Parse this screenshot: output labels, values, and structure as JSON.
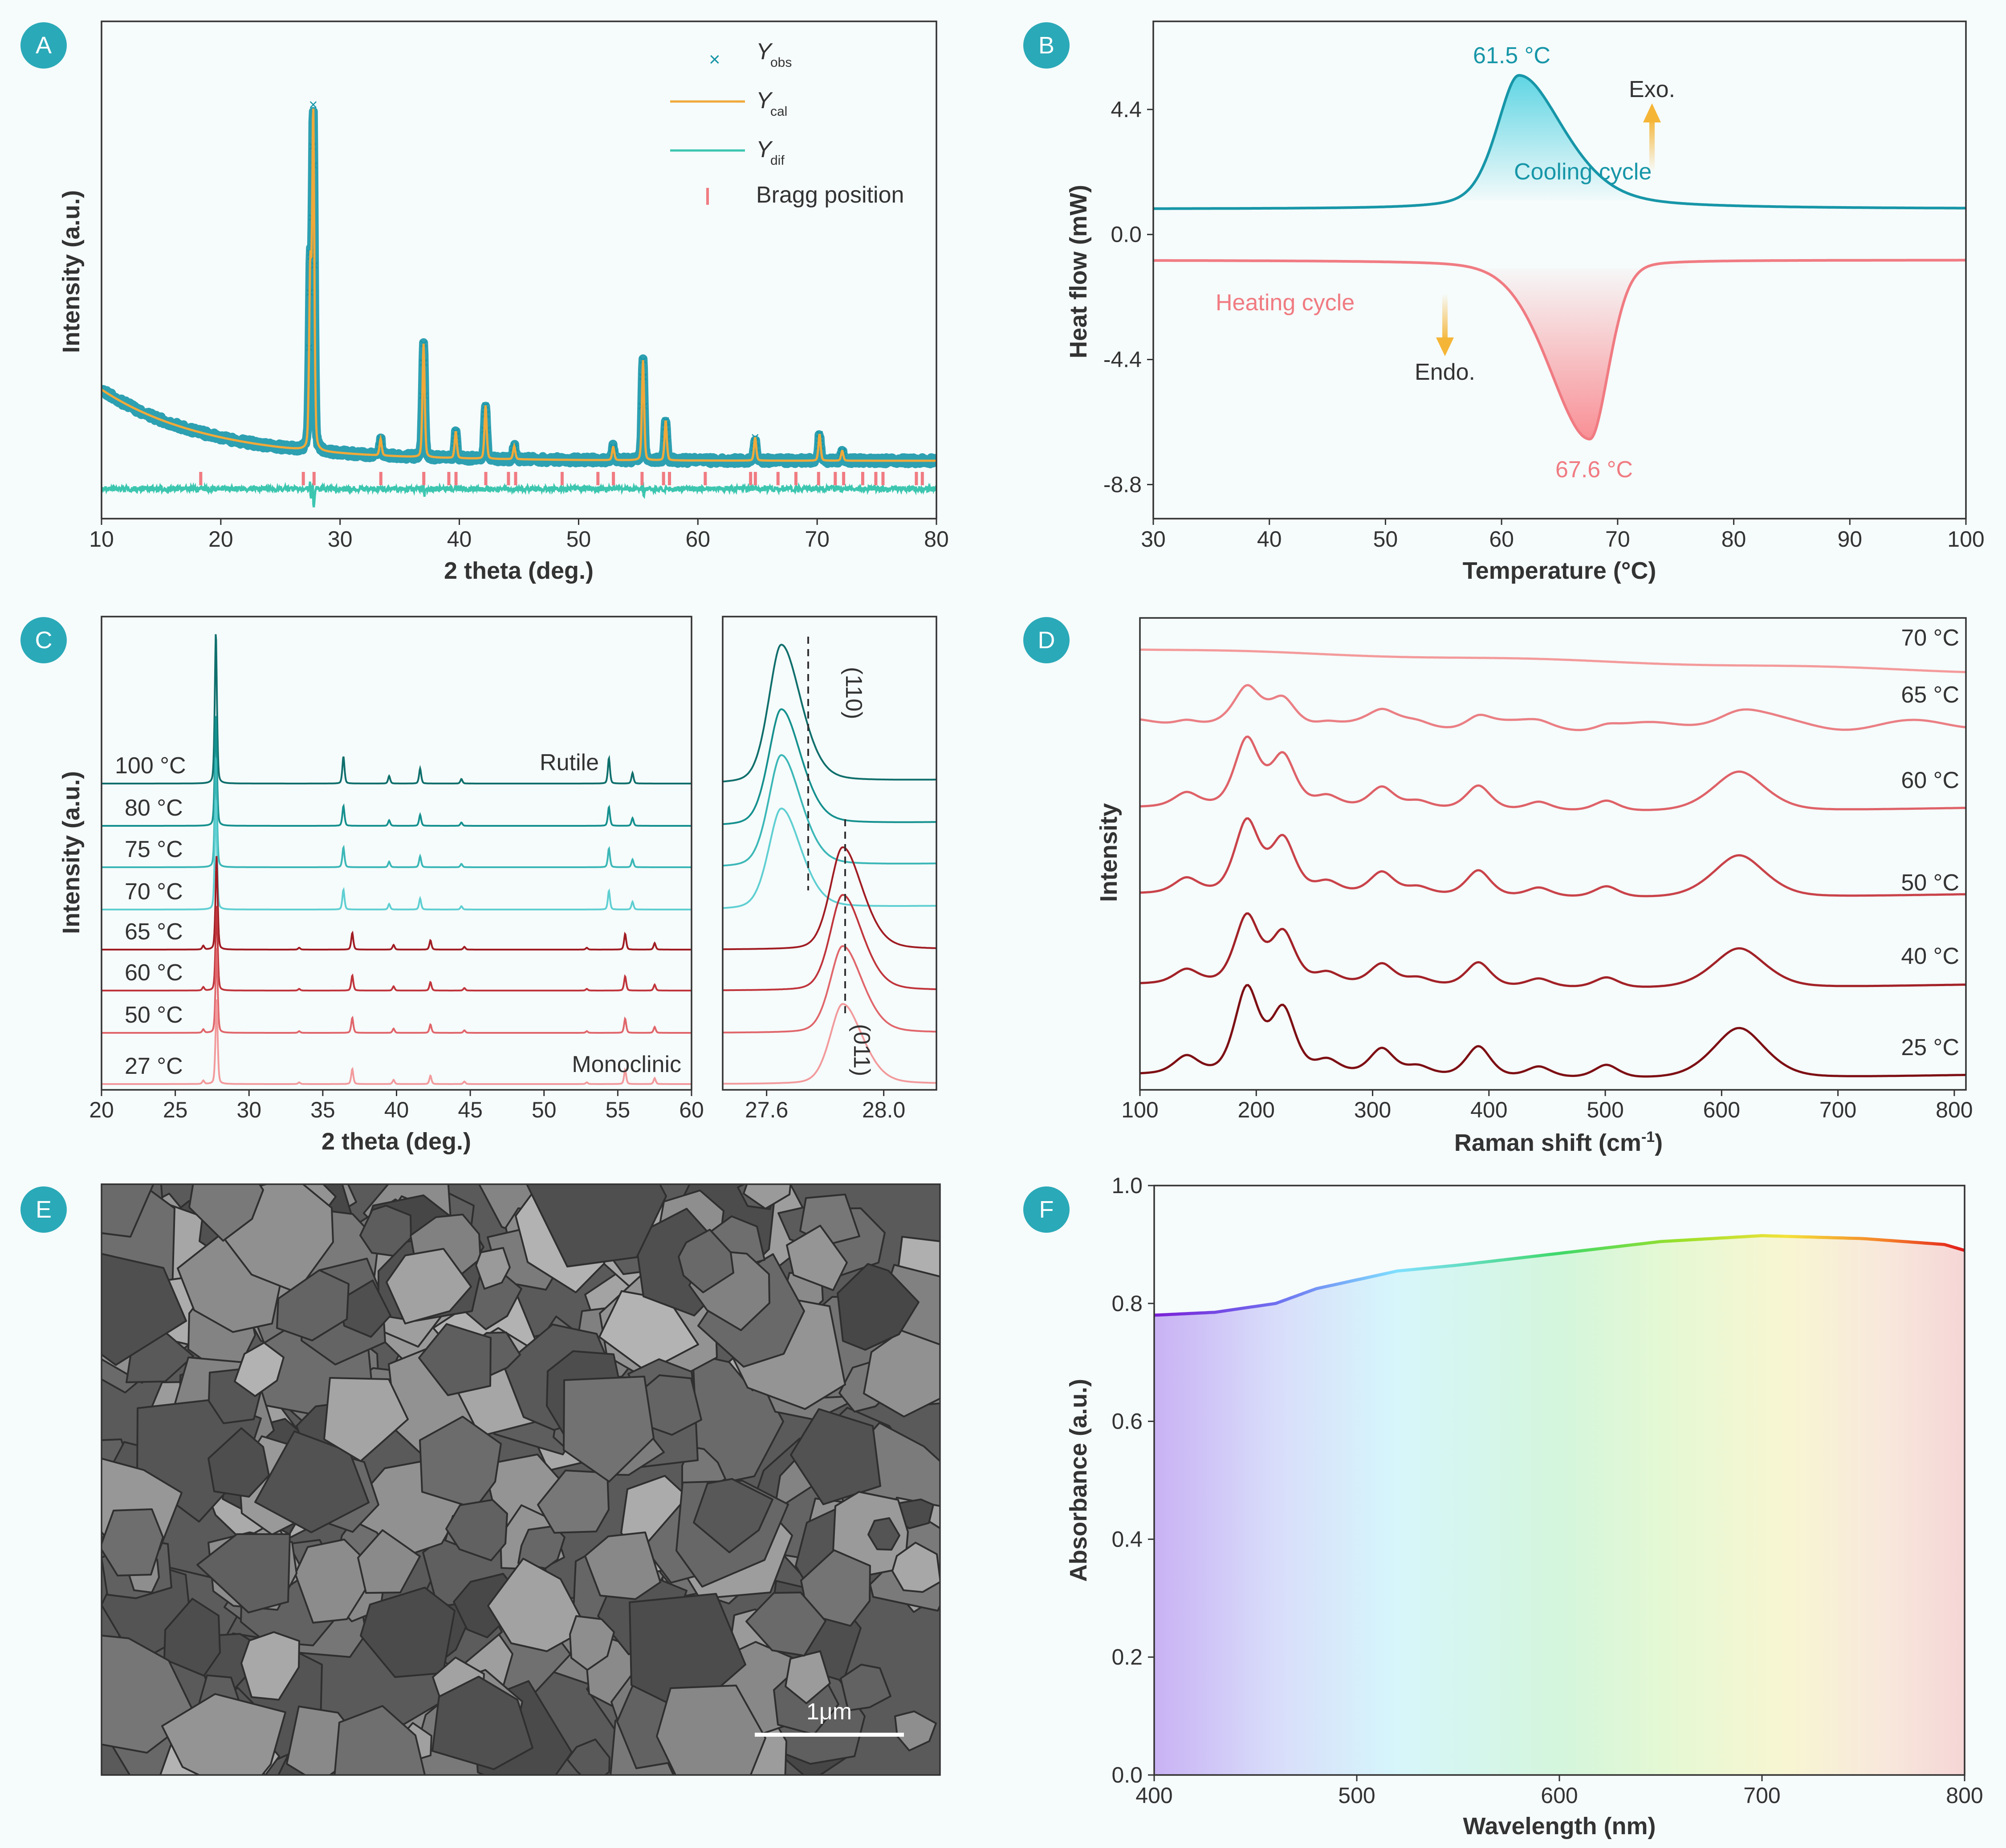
{
  "panels": {
    "A": {
      "badge": "A"
    },
    "B": {
      "badge": "B"
    },
    "C": {
      "badge": "C"
    },
    "D": {
      "badge": "D"
    },
    "E": {
      "badge": "E"
    },
    "F": {
      "badge": "F"
    }
  },
  "colors": {
    "teal": "#1796a8",
    "teal_light": "#3cc6b0",
    "orange": "#f0a93a",
    "salmon": "#f07b82",
    "badge": "#2aa9b8",
    "dark_red": "#7d0f14"
  },
  "chart_data": [
    {
      "id": "A",
      "type": "line",
      "xlabel": "2 theta (deg.)",
      "ylabel": "Intensity (a.u.)",
      "xlim": [
        10,
        80
      ],
      "xticks": [
        "10",
        "20",
        "30",
        "40",
        "50",
        "60",
        "70",
        "80"
      ],
      "legend": {
        "placement": "top-right",
        "entries": [
          {
            "name": "Y",
            "sub": "obs",
            "marker": "cross"
          },
          {
            "name": "Y",
            "sub": "cal",
            "marker": "line-orange"
          },
          {
            "name": "Y",
            "sub": "dif",
            "marker": "line-teal"
          },
          {
            "name": "Bragg position",
            "sub": "",
            "marker": "tick"
          }
        ]
      },
      "peaks": [
        {
          "x": 27.5,
          "h": 0.52
        },
        {
          "x": 27.75,
          "h": 1.0
        },
        {
          "x": 33.4,
          "h": 0.05
        },
        {
          "x": 37.0,
          "h": 0.34
        },
        {
          "x": 39.7,
          "h": 0.08
        },
        {
          "x": 42.2,
          "h": 0.16
        },
        {
          "x": 44.6,
          "h": 0.04
        },
        {
          "x": 52.9,
          "h": 0.04
        },
        {
          "x": 55.4,
          "h": 0.3
        },
        {
          "x": 57.3,
          "h": 0.12
        },
        {
          "x": 64.8,
          "h": 0.07
        },
        {
          "x": 70.2,
          "h": 0.08
        },
        {
          "x": 72.1,
          "h": 0.03
        }
      ],
      "bragg_positions": [
        18.3,
        26.9,
        27.8,
        33.4,
        37.0,
        39.1,
        39.7,
        42.2,
        44.1,
        44.7,
        48.6,
        51.6,
        52.9,
        55.3,
        57.1,
        57.6,
        60.6,
        64.4,
        64.8,
        66.7,
        68.2,
        70.1,
        71.5,
        72.2,
        73.8,
        74.9,
        75.5,
        78.3,
        78.8
      ]
    },
    {
      "id": "B",
      "type": "line",
      "xlabel": "Temperature (°C)",
      "ylabel": "Heat flow (mW)",
      "xlim": [
        30,
        100
      ],
      "ylim": [
        -10,
        7.5
      ],
      "xticks": [
        "30",
        "40",
        "50",
        "60",
        "70",
        "80",
        "90",
        "100"
      ],
      "yticks": [
        {
          "v": 4.4,
          "t": "4.4"
        },
        {
          "v": 0.0,
          "t": "0.0"
        },
        {
          "v": -4.4,
          "t": "-4.4"
        },
        {
          "v": -8.8,
          "t": "-8.8"
        }
      ],
      "series": [
        {
          "name": "Cooling cycle",
          "baseline": 0.9,
          "peak_x": 61.5,
          "peak_y": 5.6
        },
        {
          "name": "Heating cycle",
          "baseline": -0.9,
          "peak_x": 67.6,
          "peak_y": -7.2
        }
      ],
      "annotations": [
        {
          "text": "61.5 °C"
        },
        {
          "text": "67.6 °C"
        },
        {
          "text": "Exo."
        },
        {
          "text": "Endo."
        }
      ]
    },
    {
      "id": "C",
      "type": "line",
      "xlabel": "2 theta (deg.)",
      "ylabel": "Intensity (a.u.)",
      "xlim_main": [
        20,
        60
      ],
      "xticks_main": [
        "20",
        "25",
        "30",
        "35",
        "40",
        "45",
        "50",
        "55",
        "60"
      ],
      "xlim_inset": [
        27.45,
        28.18
      ],
      "xticks_inset": [
        "27.6",
        "28.0"
      ],
      "phase_labels": [
        "Rutile",
        "Monoclinic"
      ],
      "inset_labels": [
        "(110)",
        "(011)"
      ],
      "series": [
        {
          "name": "100 °C",
          "phase": "rutile"
        },
        {
          "name": "80 °C",
          "phase": "rutile"
        },
        {
          "name": "75 °C",
          "phase": "rutile"
        },
        {
          "name": "70 °C",
          "phase": "rutile"
        },
        {
          "name": "65 °C",
          "phase": "monoclinic"
        },
        {
          "name": "60 °C",
          "phase": "monoclinic"
        },
        {
          "name": "50 °C",
          "phase": "monoclinic"
        },
        {
          "name": "27 °C",
          "phase": "monoclinic"
        }
      ]
    },
    {
      "id": "D",
      "type": "line",
      "xlabel": "Raman shift (cm",
      "xlabel_sup": "-1",
      "xlabel_end": ")",
      "ylabel": "Intensity",
      "xlim": [
        100,
        810
      ],
      "xticks": [
        "100",
        "200",
        "300",
        "400",
        "500",
        "600",
        "700",
        "800"
      ],
      "series": [
        {
          "name": "70 °C"
        },
        {
          "name": "65 °C"
        },
        {
          "name": "60 °C"
        },
        {
          "name": "50 °C"
        },
        {
          "name": "40 °C"
        },
        {
          "name": "25 °C"
        }
      ],
      "raman_peaks": [
        140,
        192,
        223,
        261,
        308,
        339,
        391,
        443,
        501,
        615
      ]
    },
    {
      "id": "E",
      "type": "image",
      "scale_bar": "1μm"
    },
    {
      "id": "F",
      "type": "line",
      "xlabel": "Wavelength (nm)",
      "ylabel": "Absorbance (a.u.)",
      "xlim": [
        400,
        800
      ],
      "ylim": [
        0.0,
        1.0
      ],
      "xticks": [
        "400",
        "500",
        "600",
        "700",
        "800"
      ],
      "yticks": [
        "0.0",
        "0.2",
        "0.4",
        "0.6",
        "0.8",
        "1.0"
      ],
      "points": [
        [
          400,
          0.78
        ],
        [
          430,
          0.785
        ],
        [
          460,
          0.8
        ],
        [
          480,
          0.825
        ],
        [
          500,
          0.84
        ],
        [
          520,
          0.855
        ],
        [
          550,
          0.865
        ],
        [
          600,
          0.885
        ],
        [
          650,
          0.905
        ],
        [
          700,
          0.915
        ],
        [
          750,
          0.91
        ],
        [
          790,
          0.9
        ],
        [
          800,
          0.89
        ]
      ]
    }
  ]
}
